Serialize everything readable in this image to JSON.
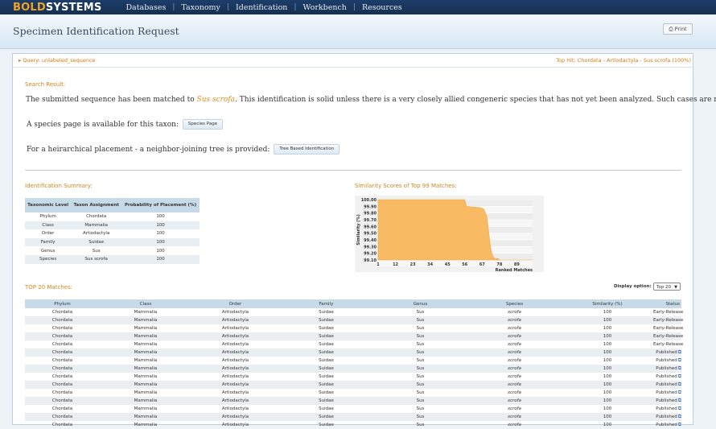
{
  "brand": {
    "bold": "BOLD",
    "systems": "SYSTEMS"
  },
  "nav": [
    "Databases",
    "Taxonomy",
    "Identification",
    "Workbench",
    "Resources"
  ],
  "page_title": "Specimen Identification Request",
  "print_label": "Print",
  "query_label": "Query: unlabeled_sequence",
  "top_hit": "Top Hit: Chordata - Artiodactyla - Sus scrofa (100%)",
  "search_result_heading": "Search Result:",
  "result_text": {
    "before": "The submitted sequence has been matched to ",
    "species": "Sus scrofa",
    "after": ". This identification is solid unless there is a very closely allied congeneric species that has not yet been analyzed. Such cases are rare."
  },
  "species_page_text": "A species page is available for this taxon:",
  "species_page_button": "Species Page",
  "tree_text": "For a heirarchical placement - a neighbor-joining tree is provided:",
  "tree_button": "Tree Based Identification",
  "summary_heading": "Identification Summary:",
  "summary": {
    "headers": [
      "Taxonomic Level",
      "Taxon Assignment",
      "Probability of Placement (%)"
    ],
    "rows": [
      [
        "Phylum",
        "Chordata",
        "100"
      ],
      [
        "Class",
        "Mammalia",
        "100"
      ],
      [
        "Order",
        "Artiodactyla",
        "100"
      ],
      [
        "Family",
        "Suidae",
        "100"
      ],
      [
        "Genus",
        "Sus",
        "100"
      ],
      [
        "Species",
        "Sus scrofa",
        "100"
      ]
    ]
  },
  "chart_heading": "Similarity Scores of Top 99 Matches:",
  "chart_data": {
    "type": "area",
    "ylabel": "Similarity (%)",
    "xlabel": "Ranked Matches",
    "ylim": [
      99.1,
      100.0
    ],
    "yticks": [
      "100.00",
      "99.90",
      "99.80",
      "99.70",
      "99.60",
      "99.50",
      "99.40",
      "99.30",
      "99.20",
      "99.10"
    ],
    "xticks": [
      "1",
      "12",
      "23",
      "34",
      "45",
      "56",
      "67",
      "78",
      "89"
    ],
    "x": [
      1,
      56,
      57,
      66,
      68,
      70,
      71,
      72,
      73,
      74,
      75,
      76,
      77,
      78,
      99
    ],
    "y": [
      100.0,
      100.0,
      99.9,
      99.88,
      99.86,
      99.75,
      99.55,
      99.35,
      99.2,
      99.15,
      99.12,
      99.12,
      99.12,
      99.1,
      99.1
    ],
    "color": "#f8ba63"
  },
  "matches_heading": "TOP 20 Matches:",
  "display_option_label": "Display option:",
  "display_option_value": "Top 20",
  "matches": {
    "headers": [
      "Phylum",
      "Class",
      "Order",
      "Family",
      "Genus",
      "Species",
      "Similarity (%)",
      "Status"
    ],
    "rows": [
      [
        "Chordata",
        "Mammalia",
        "Artiodactyla",
        "Suidae",
        "Sus",
        "scrofa",
        "100",
        "Early-Release"
      ],
      [
        "Chordata",
        "Mammalia",
        "Artiodactyla",
        "Suidae",
        "Sus",
        "scrofa",
        "100",
        "Early-Release"
      ],
      [
        "Chordata",
        "Mammalia",
        "Artiodactyla",
        "Suidae",
        "Sus",
        "scrofa",
        "100",
        "Early-Release"
      ],
      [
        "Chordata",
        "Mammalia",
        "Artiodactyla",
        "Suidae",
        "Sus",
        "scrofa",
        "100",
        "Early-Release"
      ],
      [
        "Chordata",
        "Mammalia",
        "Artiodactyla",
        "Suidae",
        "Sus",
        "scrofa",
        "100",
        "Early-Release"
      ],
      [
        "Chordata",
        "Mammalia",
        "Artiodactyla",
        "Suidae",
        "Sus",
        "scrofa",
        "100",
        "Published"
      ],
      [
        "Chordata",
        "Mammalia",
        "Artiodactyla",
        "Suidae",
        "Sus",
        "scrofa",
        "100",
        "Published"
      ],
      [
        "Chordata",
        "Mammalia",
        "Artiodactyla",
        "Suidae",
        "Sus",
        "scrofa",
        "100",
        "Published"
      ],
      [
        "Chordata",
        "Mammalia",
        "Artiodactyla",
        "Suidae",
        "Sus",
        "scrofa",
        "100",
        "Published"
      ],
      [
        "Chordata",
        "Mammalia",
        "Artiodactyla",
        "Suidae",
        "Sus",
        "scrofa",
        "100",
        "Published"
      ],
      [
        "Chordata",
        "Mammalia",
        "Artiodactyla",
        "Suidae",
        "Sus",
        "scrofa",
        "100",
        "Published"
      ],
      [
        "Chordata",
        "Mammalia",
        "Artiodactyla",
        "Suidae",
        "Sus",
        "scrofa",
        "100",
        "Published"
      ],
      [
        "Chordata",
        "Mammalia",
        "Artiodactyla",
        "Suidae",
        "Sus",
        "scrofa",
        "100",
        "Published"
      ],
      [
        "Chordata",
        "Mammalia",
        "Artiodactyla",
        "Suidae",
        "Sus",
        "scrofa",
        "100",
        "Published"
      ],
      [
        "Chordata",
        "Mammalia",
        "Artiodactyla",
        "Suidae",
        "Sus",
        "scrofa",
        "100",
        "Published"
      ]
    ]
  }
}
